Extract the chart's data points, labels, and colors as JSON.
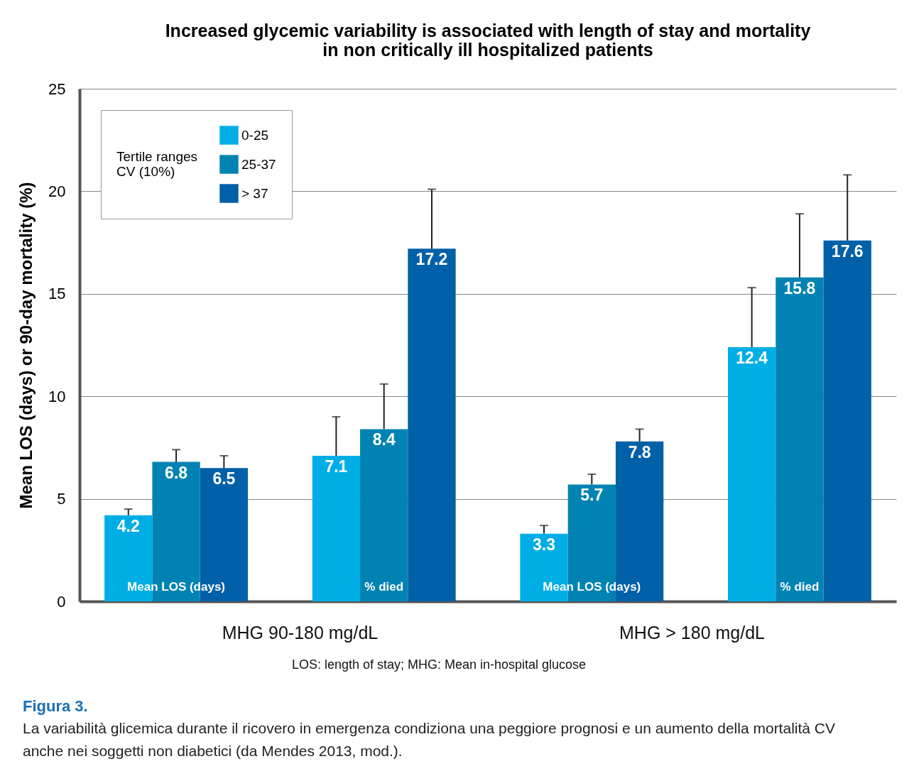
{
  "chart_data": {
    "type": "bar",
    "title": "Increased glycemic variability is associated with length of stay and mortality\nin non critically ill hospitalized patients",
    "categories": [
      "Mean LOS (days)",
      "% died",
      "Mean LOS (days)",
      "% died"
    ],
    "series": [
      {
        "name": "0-25",
        "color": "#00aee6",
        "values": [
          4.2,
          7.1,
          3.3,
          12.4
        ],
        "errors": [
          [
            4.2,
            4.5
          ],
          [
            7.1,
            9.0
          ],
          [
            3.3,
            3.7
          ],
          [
            12.4,
            15.3
          ]
        ]
      },
      {
        "name": "25-37",
        "color": "#0083b3",
        "values": [
          6.8,
          8.4,
          5.7,
          15.8
        ],
        "errors": [
          [
            6.8,
            7.4
          ],
          [
            8.4,
            10.6
          ],
          [
            5.7,
            6.2
          ],
          [
            15.8,
            18.9
          ]
        ]
      },
      {
        "name": "> 37",
        "color": "#0060a8",
        "values": [
          6.5,
          17.2,
          7.8,
          17.6
        ],
        "errors": [
          [
            6.5,
            7.1
          ],
          [
            17.2,
            20.1
          ],
          [
            7.8,
            8.4
          ],
          [
            17.6,
            20.8
          ]
        ]
      }
    ],
    "ylabel": "Mean LOS (days) or 90-day mortality (%)",
    "legend_title": "Tertile ranges\nCV (10%)",
    "ylim": [
      0,
      25
    ],
    "yticks": [
      0,
      5,
      10,
      15,
      20,
      25
    ],
    "grid": "y",
    "legend": "top left",
    "data_labels": true,
    "annotations": [
      "MHG 90-180 mg/dL",
      "MHG > 180 mg/dL",
      "LOS: length of stay; MHG: Mean in-hospital glucose",
      "Figura 3.",
      "La variabilità glicemica durante il ricovero in emergenza condiziona una peggiore prognosi e un aumento della mortalità CV\nanche nei soggetti non diabetici (da Mendes 2013, mod.)."
    ]
  }
}
